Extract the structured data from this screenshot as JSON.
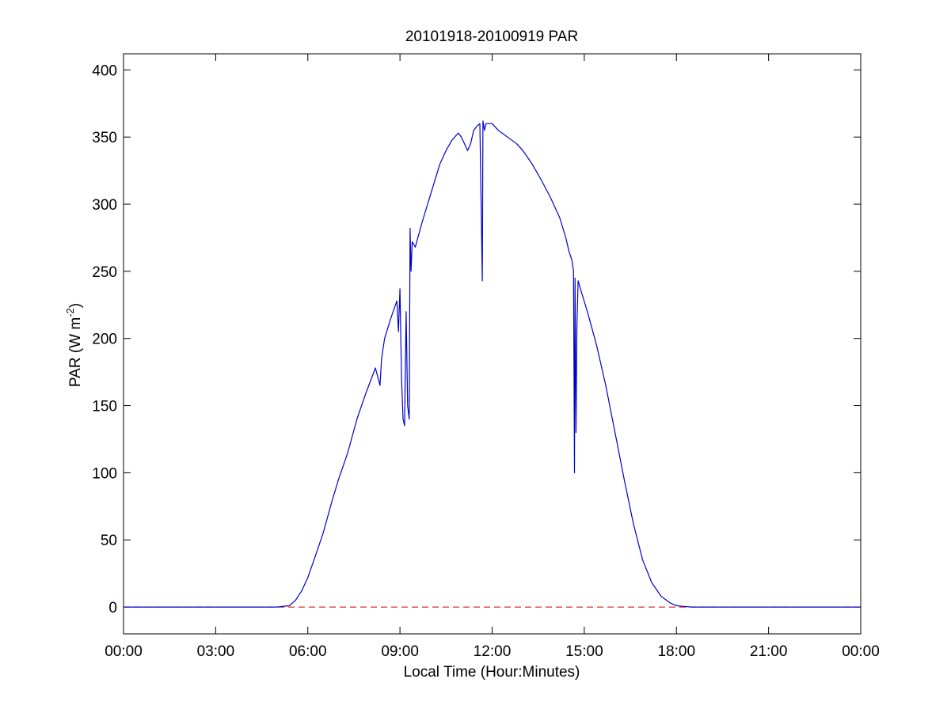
{
  "chart_data": {
    "type": "line",
    "title": "20101918-20100919 PAR",
    "xlabel": "Local Time (Hour:Minutes)",
    "ylabel_main": "PAR (W m",
    "ylabel_sup": "-2",
    "ylabel_close": ")",
    "xlim": [
      0,
      24
    ],
    "ylim": [
      -20,
      412
    ],
    "x_ticks": [
      {
        "value": 0,
        "label": "00:00"
      },
      {
        "value": 3,
        "label": "03:00"
      },
      {
        "value": 6,
        "label": "06:00"
      },
      {
        "value": 9,
        "label": "09:00"
      },
      {
        "value": 12,
        "label": "12:00"
      },
      {
        "value": 15,
        "label": "15:00"
      },
      {
        "value": 18,
        "label": "18:00"
      },
      {
        "value": 21,
        "label": "21:00"
      },
      {
        "value": 24,
        "label": "00:00"
      }
    ],
    "y_ticks": [
      {
        "value": 0,
        "label": "0"
      },
      {
        "value": 50,
        "label": "50"
      },
      {
        "value": 100,
        "label": "100"
      },
      {
        "value": 150,
        "label": "150"
      },
      {
        "value": 200,
        "label": "200"
      },
      {
        "value": 250,
        "label": "250"
      },
      {
        "value": 300,
        "label": "300"
      },
      {
        "value": 350,
        "label": "350"
      },
      {
        "value": 400,
        "label": "400"
      }
    ],
    "grid": false,
    "colors": {
      "series": "#0000cc",
      "baseline": "#cc0000"
    },
    "series": [
      {
        "x": [
          0,
          5.0,
          5.4,
          5.6,
          5.8,
          6.0,
          6.2,
          6.5,
          6.8,
          7.0,
          7.3,
          7.6,
          7.9,
          8.2,
          8.35,
          8.4,
          8.5,
          8.7,
          8.9,
          8.95,
          9.0,
          9.05,
          9.1,
          9.15,
          9.2,
          9.25,
          9.3,
          9.33,
          9.36,
          9.4,
          9.5,
          9.7,
          9.9,
          10.1,
          10.3,
          10.5,
          10.7,
          10.9,
          11.0,
          11.2,
          11.3,
          11.4,
          11.5,
          11.6,
          11.65,
          11.68,
          11.7,
          11.75,
          11.8,
          12.0,
          12.2,
          12.5,
          12.8,
          13.0,
          13.3,
          13.6,
          13.9,
          14.2,
          14.4,
          14.5,
          14.6,
          14.65,
          14.68,
          14.7,
          14.73,
          14.76,
          14.8,
          14.9,
          15.1,
          15.4,
          15.7,
          16.0,
          16.3,
          16.6,
          16.9,
          17.2,
          17.5,
          17.8,
          18.0,
          18.2,
          18.5,
          19.0,
          21.0,
          24
        ],
        "y": [
          0,
          0,
          1,
          5,
          12,
          22,
          35,
          55,
          80,
          95,
          115,
          140,
          160,
          178,
          165,
          185,
          200,
          215,
          228,
          205,
          237,
          170,
          140,
          135,
          220,
          150,
          140,
          282,
          250,
          272,
          268,
          285,
          300,
          315,
          330,
          340,
          348,
          353,
          350,
          340,
          345,
          355,
          358,
          360,
          290,
          243,
          362,
          355,
          360,
          360,
          355,
          350,
          345,
          340,
          330,
          318,
          305,
          290,
          275,
          265,
          258,
          250,
          100,
          245,
          130,
          210,
          243,
          235,
          220,
          195,
          165,
          130,
          95,
          62,
          35,
          18,
          8,
          3,
          1,
          0.5,
          0,
          0,
          0,
          0
        ]
      }
    ],
    "baseline": {
      "value": 0,
      "style": "dashed"
    }
  }
}
